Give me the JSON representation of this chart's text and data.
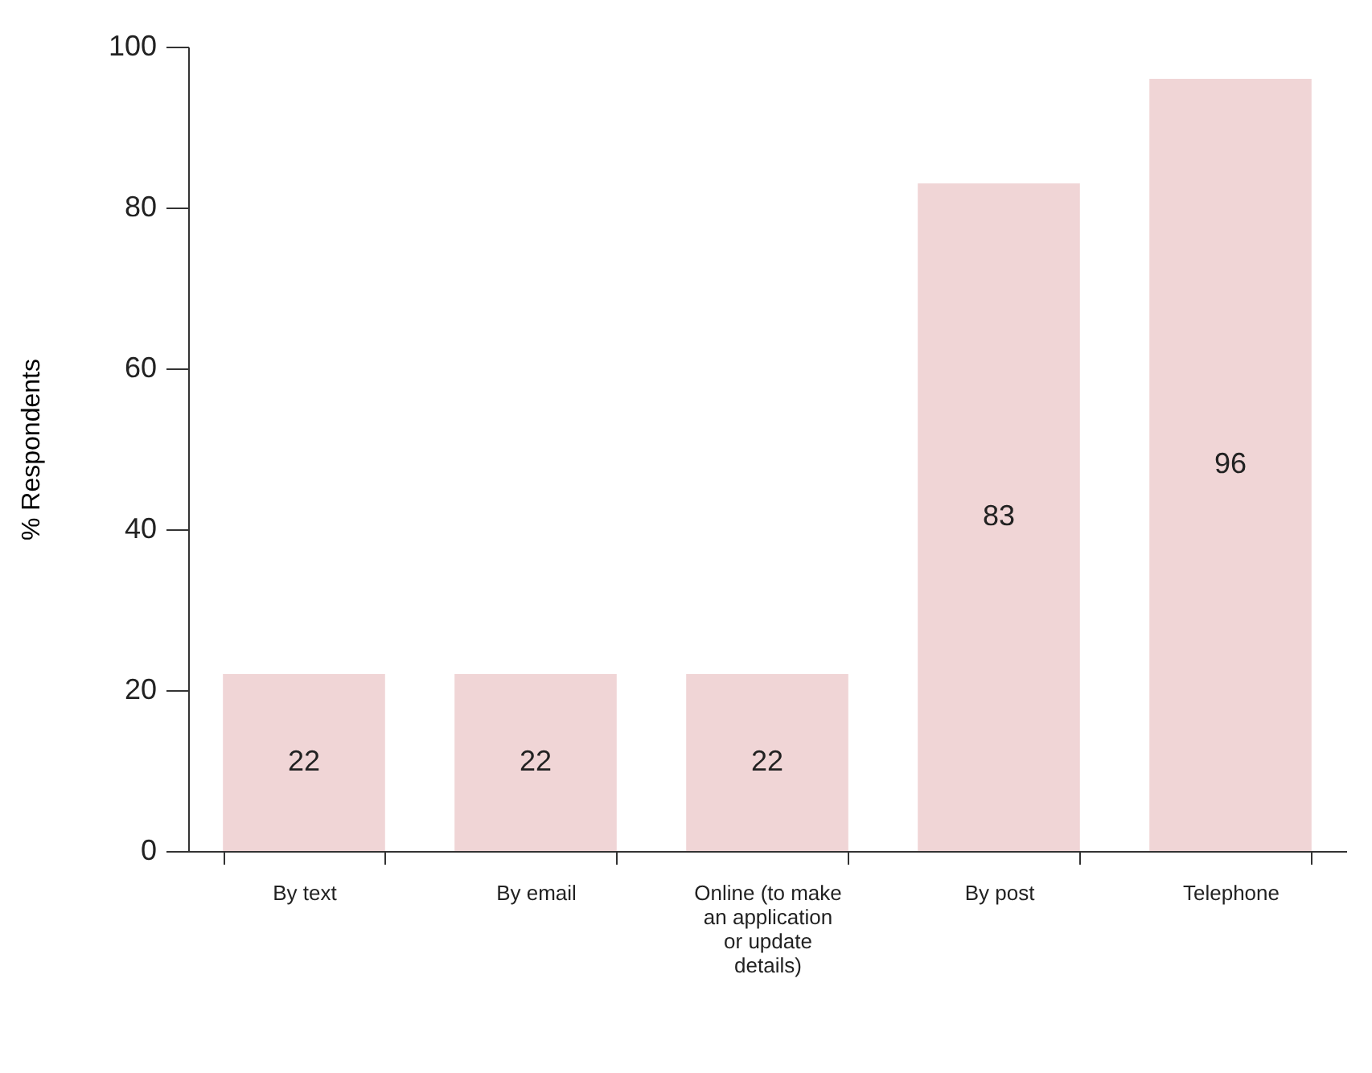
{
  "chart_data": {
    "type": "bar",
    "ylabel": "% Respondents",
    "categories": [
      "By text",
      "By email",
      "Online (to make an application or update details)",
      "By post",
      "Telephone"
    ],
    "values": [
      22,
      22,
      22,
      83,
      96
    ],
    "color": "#f0d5d6",
    "ylim": [
      0,
      100
    ],
    "yticks": [
      0,
      20,
      40,
      60,
      80,
      100
    ],
    "grid": false,
    "data_labels": true
  }
}
